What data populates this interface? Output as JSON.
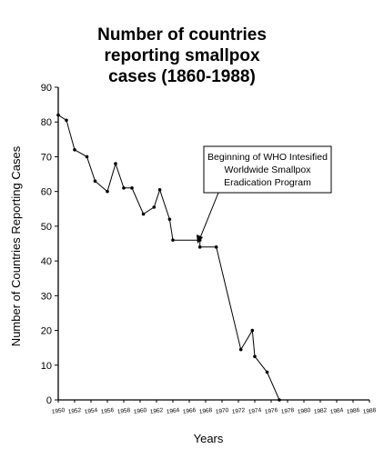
{
  "chart_data": {
    "type": "line",
    "title_lines": [
      "Number of countries",
      "reporting smallpox",
      "cases (1860-1988)"
    ],
    "xlabel": "Years",
    "ylabel": "Number of Countries Reporting Cases",
    "ylim": [
      0,
      90
    ],
    "yticks": [
      0,
      10,
      20,
      30,
      40,
      50,
      60,
      70,
      80,
      90
    ],
    "xlim": [
      1950,
      1988
    ],
    "xticks": [
      "1950",
      "1952",
      "1954",
      "1956",
      "1958",
      "1960",
      "1962",
      "1964",
      "1966",
      "1968",
      "1970",
      "1972",
      "1974",
      "1976",
      "1978",
      "1980",
      "1982",
      "1984",
      "1986",
      "1988"
    ],
    "points": [
      {
        "x": 1950.0,
        "y": 82
      },
      {
        "x": 1951.0,
        "y": 80.5
      },
      {
        "x": 1952.0,
        "y": 72
      },
      {
        "x": 1953.5,
        "y": 70
      },
      {
        "x": 1954.5,
        "y": 63
      },
      {
        "x": 1956.0,
        "y": 60
      },
      {
        "x": 1957.0,
        "y": 68
      },
      {
        "x": 1958.0,
        "y": 61
      },
      {
        "x": 1959.0,
        "y": 61
      },
      {
        "x": 1960.4,
        "y": 53.5
      },
      {
        "x": 1961.7,
        "y": 55.5
      },
      {
        "x": 1962.4,
        "y": 60.5
      },
      {
        "x": 1963.6,
        "y": 52
      },
      {
        "x": 1964.0,
        "y": 46
      },
      {
        "x": 1967.3,
        "y": 46
      },
      {
        "x": 1967.3,
        "y": 44
      },
      {
        "x": 1969.3,
        "y": 44
      },
      {
        "x": 1972.3,
        "y": 14.5
      },
      {
        "x": 1973.7,
        "y": 20
      },
      {
        "x": 1974.0,
        "y": 12.5
      },
      {
        "x": 1975.5,
        "y": 8
      },
      {
        "x": 1977.0,
        "y": 0
      },
      {
        "x": 1988.0,
        "y": 0
      }
    ],
    "annotation": {
      "lines": [
        "Beginning of WHO Intesified",
        "Worldwide Smallpox",
        "Eradication Program"
      ],
      "points_to": {
        "x": 1968.3,
        "y": 45
      }
    },
    "grid": false,
    "legend": "none"
  }
}
